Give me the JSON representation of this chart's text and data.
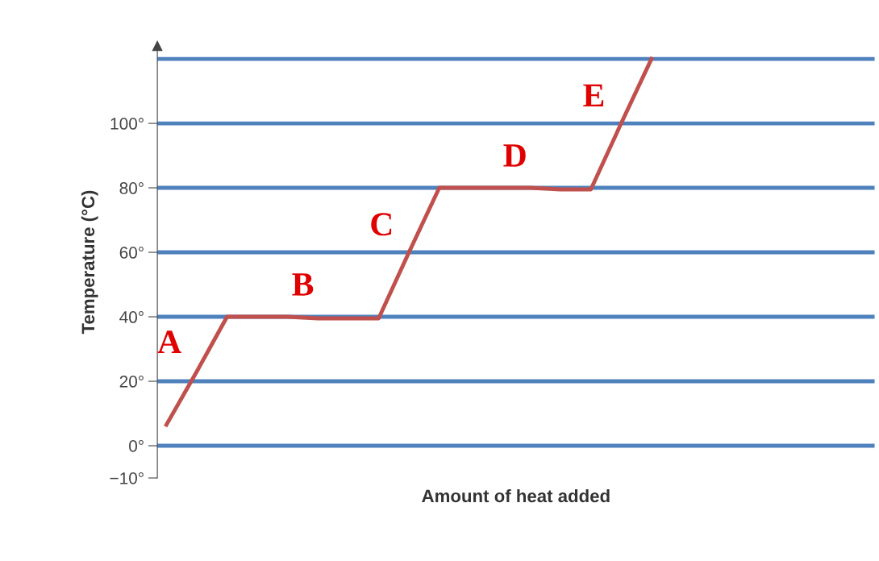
{
  "chart_data": {
    "type": "line",
    "xlabel": "Amount of heat added",
    "ylabel": "Temperature (°C)",
    "categories": [
      null,
      null,
      null,
      null,
      null,
      null,
      null,
      null,
      null,
      null,
      null,
      null,
      null,
      null,
      null,
      null,
      null
    ],
    "series": [
      {
        "color": "#c0504d",
        "values": [
          6.5,
          23,
          40,
          40,
          40,
          39.5,
          39.5,
          39.5,
          60,
          80,
          80,
          80,
          80,
          79.5,
          79.5,
          100,
          120
        ]
      }
    ],
    "ylim": [
      -10,
      124
    ],
    "yticks": [
      {
        "value": -10,
        "label": "−10°"
      },
      {
        "value": 0,
        "label": "0°"
      },
      {
        "value": 20,
        "label": "20°"
      },
      {
        "value": 40,
        "label": "40°"
      },
      {
        "value": 60,
        "label": "60°"
      },
      {
        "value": 80,
        "label": "80°"
      },
      {
        "value": 100,
        "label": "100°"
      }
    ],
    "tick_labels": "y",
    "grid": false,
    "legend": false,
    "marker": "none",
    "line_style": "solid",
    "ref_lines": [
      {
        "axis": "y",
        "value": 0,
        "color": "#4f81bd"
      },
      {
        "axis": "y",
        "value": 20,
        "color": "#4f81bd"
      },
      {
        "axis": "y",
        "value": 40,
        "color": "#4f81bd"
      },
      {
        "axis": "y",
        "value": 60,
        "color": "#4f81bd"
      },
      {
        "axis": "y",
        "value": 80,
        "color": "#4f81bd"
      },
      {
        "axis": "y",
        "value": 100,
        "color": "#4f81bd"
      },
      {
        "axis": "y",
        "value": 120,
        "color": "#4f81bd"
      }
    ],
    "annotations": [
      "A",
      "B",
      "C",
      "D",
      "E"
    ]
  }
}
